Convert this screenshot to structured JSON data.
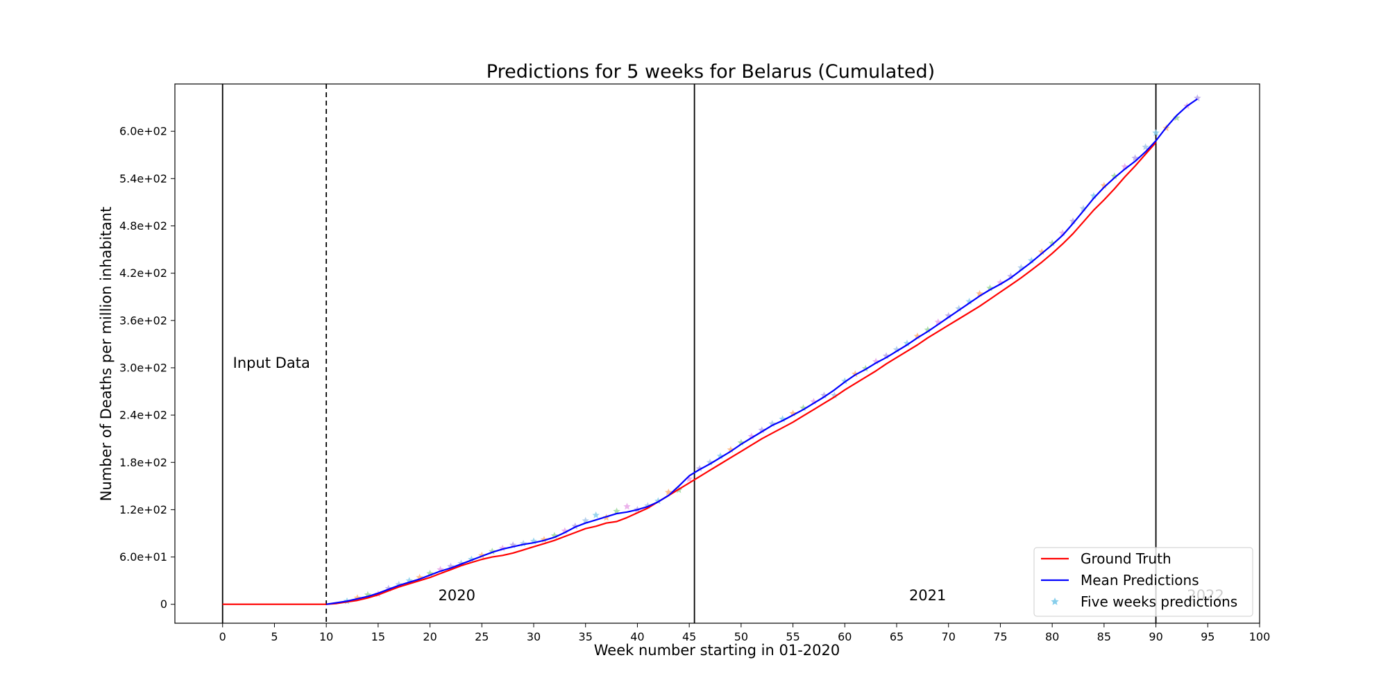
{
  "chart_data": {
    "type": "line",
    "title": "Predictions for 5 weeks for Belarus (Cumulated)",
    "xlabel": "Week number starting in 01-2020",
    "ylabel": "Number of Deaths per million inhabitant",
    "xlim": [
      -4.6,
      100
    ],
    "ylim": [
      -24,
      660
    ],
    "xticks": [
      0,
      5,
      10,
      15,
      20,
      25,
      30,
      35,
      40,
      45,
      50,
      55,
      60,
      65,
      70,
      75,
      80,
      85,
      90,
      95,
      100
    ],
    "xtick_labels": [
      "0",
      "5",
      "10",
      "15",
      "20",
      "25",
      "30",
      "35",
      "40",
      "45",
      "50",
      "55",
      "60",
      "65",
      "70",
      "75",
      "80",
      "85",
      "90",
      "95",
      "100"
    ],
    "yticks": [
      0,
      60,
      120,
      180,
      240,
      300,
      360,
      420,
      480,
      540,
      600
    ],
    "ytick_labels": [
      "0",
      "6.0e+01",
      "1.2e+02",
      "1.8e+02",
      "2.4e+02",
      "3.0e+02",
      "3.6e+02",
      "4.2e+02",
      "4.8e+02",
      "5.4e+02",
      "6.0e+02"
    ],
    "grid": false,
    "legend_position": "bottom-right",
    "vertical_lines": [
      {
        "x": 0,
        "style": "solid"
      },
      {
        "x": 10,
        "style": "dashed"
      },
      {
        "x": 45.5,
        "style": "solid"
      },
      {
        "x": 90,
        "style": "solid"
      }
    ],
    "annotations": [
      {
        "text": "Input Data",
        "x": 1,
        "y": 300,
        "color": "#000000"
      },
      {
        "text": "2020",
        "x": 20.8,
        "y": 5,
        "color": "#000000"
      },
      {
        "text": "2021",
        "x": 66.2,
        "y": 5,
        "color": "#000000"
      },
      {
        "text": "2022",
        "x": 93,
        "y": 5,
        "color": "#cfcfcf"
      }
    ],
    "series": [
      {
        "name": "Ground Truth",
        "color": "#ff0000",
        "x": [
          0,
          10,
          11,
          12,
          13,
          14,
          15,
          16,
          17,
          18,
          19,
          20,
          21,
          22,
          23,
          24,
          25,
          26,
          27,
          28,
          29,
          30,
          31,
          32,
          33,
          34,
          35,
          36,
          37,
          38,
          39,
          40,
          41,
          42,
          43,
          44,
          45,
          46,
          47,
          48,
          49,
          50,
          51,
          52,
          53,
          54,
          55,
          56,
          57,
          58,
          59,
          60,
          61,
          62,
          63,
          64,
          65,
          66,
          67,
          68,
          69,
          70,
          71,
          72,
          73,
          74,
          75,
          76,
          77,
          78,
          79,
          80,
          81,
          82,
          83,
          84,
          85,
          86,
          87,
          88,
          89,
          90
        ],
        "y": [
          0,
          0,
          1,
          3,
          5,
          8,
          12,
          17,
          22,
          26,
          30,
          34,
          39,
          44,
          49,
          53,
          57,
          60,
          62,
          65,
          69,
          73,
          77,
          81,
          86,
          91,
          96,
          99,
          103,
          105,
          110,
          116,
          122,
          130,
          138,
          146,
          154,
          162,
          170,
          178,
          186,
          194,
          202,
          210,
          217,
          224,
          231,
          239,
          247,
          255,
          263,
          272,
          280,
          288,
          296,
          305,
          313,
          321,
          329,
          338,
          346,
          354,
          362,
          370,
          378,
          387,
          396,
          405,
          414,
          424,
          434,
          445,
          457,
          470,
          485,
          500,
          513,
          527,
          542,
          556,
          571,
          586
        ]
      },
      {
        "name": "Mean Predictions",
        "color": "#0000ff",
        "x": [
          10,
          11,
          12,
          13,
          14,
          15,
          16,
          17,
          18,
          19,
          20,
          21,
          22,
          23,
          24,
          25,
          26,
          27,
          28,
          29,
          30,
          31,
          32,
          33,
          34,
          35,
          36,
          37,
          38,
          39,
          40,
          41,
          42,
          43,
          44,
          45,
          46,
          47,
          48,
          49,
          50,
          51,
          52,
          53,
          54,
          55,
          56,
          57,
          58,
          59,
          60,
          61,
          62,
          63,
          64,
          65,
          66,
          67,
          68,
          69,
          70,
          71,
          72,
          73,
          74,
          75,
          76,
          77,
          78,
          79,
          80,
          81,
          82,
          83,
          84,
          85,
          86,
          87,
          88,
          89,
          90,
          91,
          92,
          93,
          94
        ],
        "y": [
          0,
          2,
          4,
          7,
          10,
          14,
          19,
          24,
          28,
          32,
          37,
          42,
          46,
          51,
          56,
          61,
          66,
          70,
          73,
          76,
          78,
          81,
          85,
          91,
          98,
          103,
          107,
          111,
          115,
          117,
          120,
          124,
          130,
          138,
          150,
          163,
          171,
          178,
          186,
          194,
          203,
          211,
          219,
          227,
          233,
          240,
          247,
          255,
          263,
          272,
          282,
          291,
          298,
          306,
          313,
          321,
          329,
          338,
          346,
          355,
          364,
          373,
          382,
          391,
          399,
          406,
          414,
          424,
          434,
          445,
          456,
          468,
          483,
          499,
          515,
          529,
          541,
          552,
          562,
          574,
          588,
          605,
          620,
          632,
          641
        ]
      },
      {
        "name": "Five weeks predictions",
        "color": "#87ceeb",
        "type": "scatter",
        "marker": "star",
        "x": [
          12,
          13,
          14,
          15,
          16,
          17,
          18,
          19,
          20,
          21,
          22,
          23,
          24,
          25,
          26,
          27,
          28,
          29,
          30,
          31,
          32,
          33,
          34,
          35,
          36,
          37,
          38,
          39,
          40,
          41,
          42,
          43,
          44,
          45,
          46,
          47,
          48,
          49,
          50,
          51,
          52,
          53,
          54,
          55,
          56,
          57,
          58,
          59,
          60,
          61,
          62,
          63,
          64,
          65,
          66,
          67,
          68,
          69,
          70,
          71,
          72,
          73,
          74,
          75,
          76,
          77,
          78,
          79,
          80,
          81,
          82,
          83,
          84,
          85,
          86,
          87,
          88,
          89,
          90,
          91,
          92,
          93,
          94
        ],
        "y": [
          4,
          8,
          12,
          13,
          20,
          25,
          30,
          34,
          39,
          44,
          48,
          52,
          57,
          62,
          67,
          71,
          75,
          77,
          80,
          82,
          87,
          93,
          99,
          106,
          113,
          110,
          118,
          124,
          120,
          125,
          131,
          142,
          145,
          159,
          172,
          180,
          188,
          196,
          205,
          213,
          221,
          229,
          235,
          242,
          249,
          257,
          265,
          265,
          283,
          292,
          299,
          308,
          315,
          323,
          331,
          340,
          348,
          358,
          366,
          375,
          384,
          394,
          401,
          408,
          416,
          427,
          436,
          447,
          458,
          471,
          486,
          502,
          518,
          531,
          543,
          555,
          566,
          580,
          598,
          604,
          617,
          632,
          642
        ]
      }
    ]
  }
}
